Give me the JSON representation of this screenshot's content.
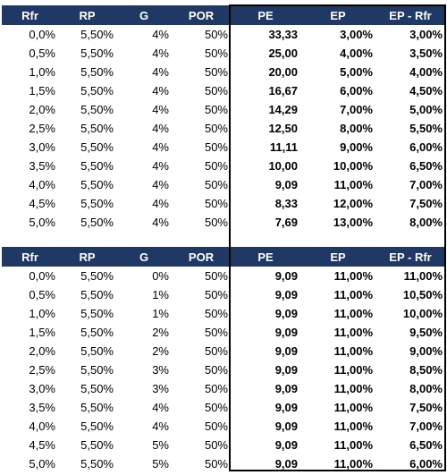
{
  "table1": {
    "headers": [
      "Rfr",
      "RP",
      "G",
      "POR",
      "PE",
      "EP",
      "EP - Rfr"
    ],
    "rows": [
      [
        "0,0%",
        "5,50%",
        "4%",
        "50%",
        "33,33",
        "3,00%",
        "3,00%"
      ],
      [
        "0,5%",
        "5,50%",
        "4%",
        "50%",
        "25,00",
        "4,00%",
        "3,50%"
      ],
      [
        "1,0%",
        "5,50%",
        "4%",
        "50%",
        "20,00",
        "5,00%",
        "4,00%"
      ],
      [
        "1,5%",
        "5,50%",
        "4%",
        "50%",
        "16,67",
        "6,00%",
        "4,50%"
      ],
      [
        "2,0%",
        "5,50%",
        "4%",
        "50%",
        "14,29",
        "7,00%",
        "5,00%"
      ],
      [
        "2,5%",
        "5,50%",
        "4%",
        "50%",
        "12,50",
        "8,00%",
        "5,50%"
      ],
      [
        "3,0%",
        "5,50%",
        "4%",
        "50%",
        "11,11",
        "9,00%",
        "6,00%"
      ],
      [
        "3,5%",
        "5,50%",
        "4%",
        "50%",
        "10,00",
        "10,00%",
        "6,50%"
      ],
      [
        "4,0%",
        "5,50%",
        "4%",
        "50%",
        "9,09",
        "11,00%",
        "7,00%"
      ],
      [
        "4,5%",
        "5,50%",
        "4%",
        "50%",
        "8,33",
        "12,00%",
        "7,50%"
      ],
      [
        "5,0%",
        "5,50%",
        "4%",
        "50%",
        "7,69",
        "13,00%",
        "8,00%"
      ]
    ]
  },
  "table2": {
    "headers": [
      "Rfr",
      "RP",
      "G",
      "POR",
      "PE",
      "EP",
      "EP - Rfr"
    ],
    "rows": [
      [
        "0,0%",
        "5,50%",
        "0%",
        "50%",
        "9,09",
        "11,00%",
        "11,00%"
      ],
      [
        "0,5%",
        "5,50%",
        "1%",
        "50%",
        "9,09",
        "11,00%",
        "10,50%"
      ],
      [
        "1,0%",
        "5,50%",
        "1%",
        "50%",
        "9,09",
        "11,00%",
        "10,00%"
      ],
      [
        "1,5%",
        "5,50%",
        "2%",
        "50%",
        "9,09",
        "11,00%",
        "9,50%"
      ],
      [
        "2,0%",
        "5,50%",
        "2%",
        "50%",
        "9,09",
        "11,00%",
        "9,00%"
      ],
      [
        "2,5%",
        "5,50%",
        "3%",
        "50%",
        "9,09",
        "11,00%",
        "8,50%"
      ],
      [
        "3,0%",
        "5,50%",
        "3%",
        "50%",
        "9,09",
        "11,00%",
        "8,00%"
      ],
      [
        "3,5%",
        "5,50%",
        "4%",
        "50%",
        "9,09",
        "11,00%",
        "7,50%"
      ],
      [
        "4,0%",
        "5,50%",
        "4%",
        "50%",
        "9,09",
        "11,00%",
        "7,00%"
      ],
      [
        "4,5%",
        "5,50%",
        "5%",
        "50%",
        "9,09",
        "11,00%",
        "6,50%"
      ],
      [
        "5,0%",
        "5,50%",
        "5%",
        "50%",
        "9,09",
        "11,00%",
        "6,00%"
      ]
    ]
  },
  "colors": {
    "header_bg": "#1f3864",
    "header_text": "#ffffff",
    "frame": "#000000"
  }
}
